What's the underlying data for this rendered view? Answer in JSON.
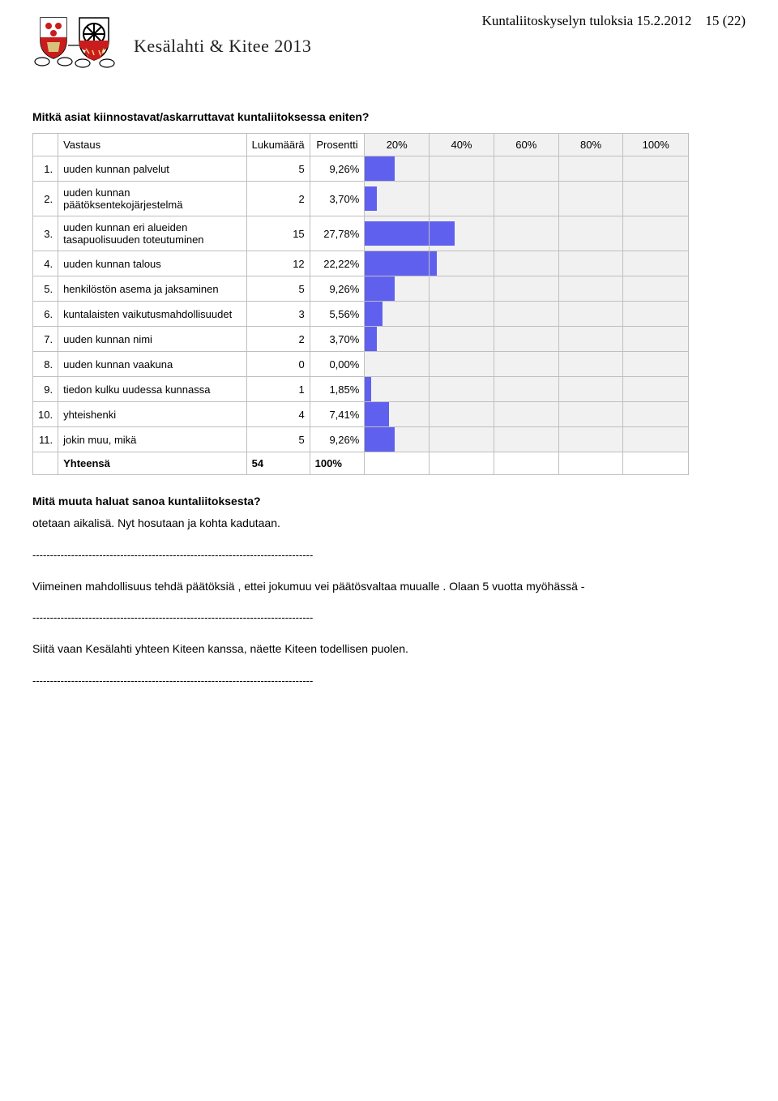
{
  "header": {
    "brand": "Kesälahti & Kitee 2013",
    "top_right": "Kuntaliitoskyselyn tuloksia 15.2.2012",
    "page_num": "15 (22)"
  },
  "question1": {
    "title": "Mitkä asiat kiinnostavat/askarruttavat kuntaliitoksessa eniten?",
    "columns": {
      "answer": "Vastaus",
      "count": "Lukumäärä",
      "pct": "Prosentti",
      "ticks": [
        "20%",
        "40%",
        "60%",
        "80%",
        "100%"
      ]
    },
    "rows": [
      {
        "n": "1.",
        "label": "uuden kunnan palvelut",
        "count": 5,
        "pct": "9,26%",
        "pct_val": 9.26
      },
      {
        "n": "2.",
        "label": "uuden kunnan päätöksentekojärjestelmä",
        "count": 2,
        "pct": "3,70%",
        "pct_val": 3.7
      },
      {
        "n": "3.",
        "label": "uuden kunnan eri alueiden tasapuolisuuden toteutuminen",
        "count": 15,
        "pct": "27,78%",
        "pct_val": 27.78
      },
      {
        "n": "4.",
        "label": "uuden kunnan talous",
        "count": 12,
        "pct": "22,22%",
        "pct_val": 22.22
      },
      {
        "n": "5.",
        "label": "henkilöstön asema ja jaksaminen",
        "count": 5,
        "pct": "9,26%",
        "pct_val": 9.26
      },
      {
        "n": "6.",
        "label": "kuntalaisten vaikutusmahdollisuudet",
        "count": 3,
        "pct": "5,56%",
        "pct_val": 5.56
      },
      {
        "n": "7.",
        "label": "uuden kunnan nimi",
        "count": 2,
        "pct": "3,70%",
        "pct_val": 3.7
      },
      {
        "n": "8.",
        "label": "uuden kunnan vaakuna",
        "count": 0,
        "pct": "0,00%",
        "pct_val": 0.0
      },
      {
        "n": "9.",
        "label": "tiedon kulku uudessa kunnassa",
        "count": 1,
        "pct": "1,85%",
        "pct_val": 1.85
      },
      {
        "n": "10.",
        "label": "yhteishenki",
        "count": 4,
        "pct": "7,41%",
        "pct_val": 7.41
      },
      {
        "n": "11.",
        "label": "jokin muu, mikä",
        "count": 5,
        "pct": "9,26%",
        "pct_val": 9.26
      }
    ],
    "total": {
      "label": "Yhteensä",
      "count": "54",
      "pct": "100%"
    },
    "bar_color": "#6060ef",
    "bar_bg": "#f1f1f1",
    "tick_width_pct": 20
  },
  "question2": {
    "title": "Mitä muuta haluat sanoa kuntaliitoksesta?",
    "responses": [
      "otetaan aikalisä. Nyt hosutaan ja kohta kadutaan.",
      "Viimeinen mahdollisuus tehdä päätöksiä , ettei jokumuu vei päätösvaltaa muualle . Olaan 5 vuotta myöhässä -",
      "Siitä vaan Kesälahti yhteen Kiteen kanssa, näette Kiteen todellisen puolen."
    ],
    "separator": "--------------------------------------------------------------------------------"
  }
}
